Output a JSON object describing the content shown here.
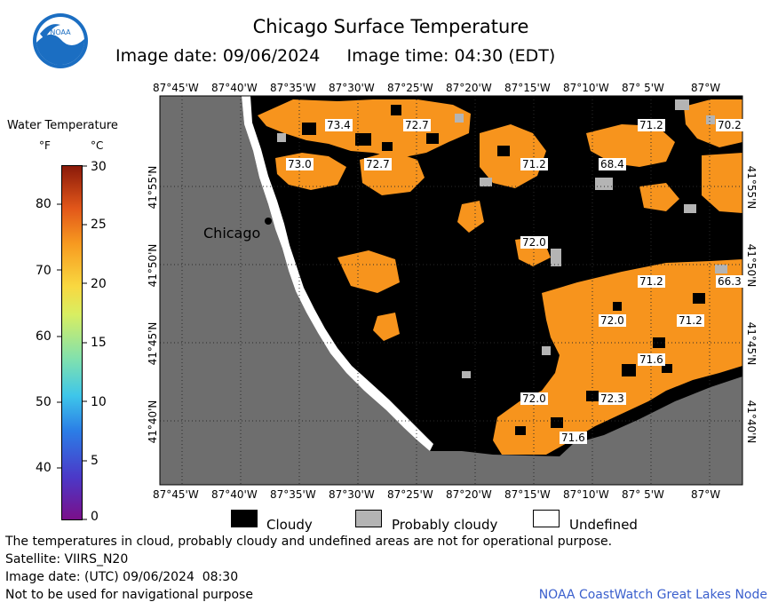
{
  "title": "Chicago Surface Temperature",
  "image_date_line": "Image date: 09/06/2024     Image time: 04:30 (EDT)",
  "legend": {
    "title": "Water Temperature",
    "unit_f": "°F",
    "unit_c": "°C",
    "f_ticks": [
      "80",
      "70",
      "60",
      "50",
      "40"
    ],
    "c_ticks": [
      "30",
      "25",
      "20",
      "15",
      "10",
      "5",
      "0"
    ]
  },
  "lon_ticks": [
    "87°45'W",
    "87°40'W",
    "87°35'W",
    "87°30'W",
    "87°25'W",
    "87°20'W",
    "87°15'W",
    "87°10'W",
    "87° 5'W",
    "87°W"
  ],
  "lat_ticks": [
    "41°55'N",
    "41°50'N",
    "41°45'N",
    "41°40'N"
  ],
  "city_label": "Chicago",
  "temperature_labels": [
    "73.4",
    "72.7",
    "71.2",
    "70.2",
    "73.0",
    "72.7",
    "71.2",
    "68.4",
    "72.0",
    "71.2",
    "66.3",
    "72.0",
    "71.2",
    "71.6",
    "72.0",
    "72.3",
    "71.6"
  ],
  "map_legend": {
    "cloudy": "Cloudy",
    "probably_cloudy": "Probably cloudy",
    "undefined": "Undefined"
  },
  "footer": {
    "note": "The temperatures in cloud, probably cloudy and undefined areas are not for operational purpose.",
    "satellite": "Satellite: VIIRS_N20",
    "utc_date": "Image date: (UTC) 09/06/2024  08:30",
    "nav_warning": "Not to be used for navigational purpose",
    "credit": "NOAA CoastWatch Great Lakes Node"
  },
  "logo_text": "NOAA",
  "colors": {
    "water_warm": "#f7941d",
    "cloud": "#000000",
    "probably_cloudy": "#b4b4b4",
    "land": "#6e6e6e",
    "credit": "#3a5fcd"
  }
}
